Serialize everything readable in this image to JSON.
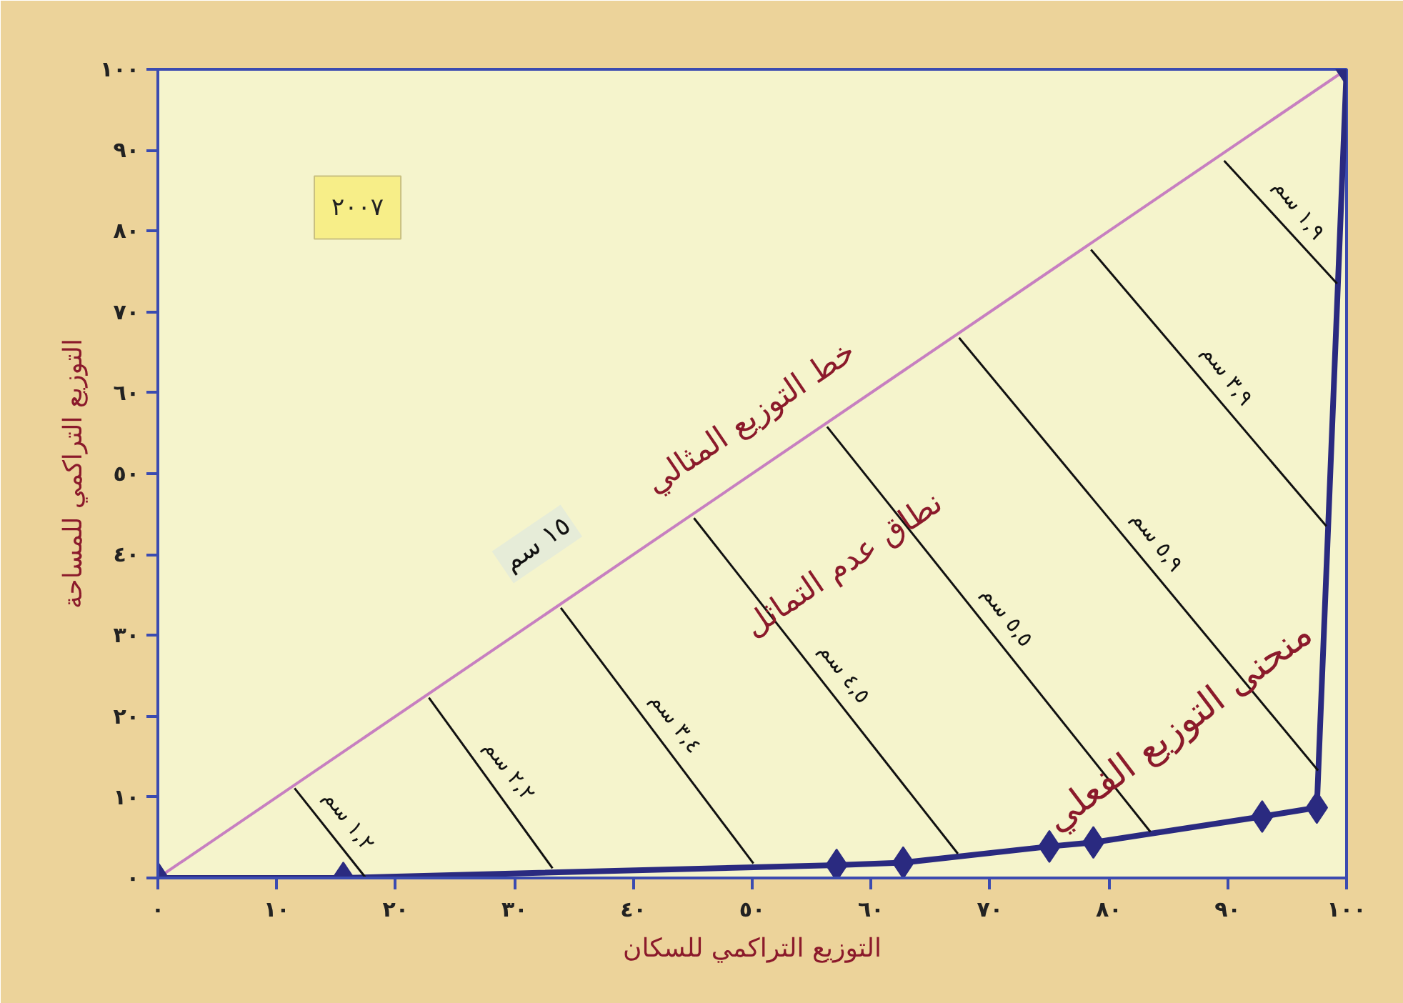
{
  "chart_data": {
    "type": "line",
    "xlabel": "التوزيع التراكمي للسكان",
    "ylabel": "التوزيع التراكمي للمساحة",
    "xlim": [
      0,
      100
    ],
    "ylim": [
      0,
      100
    ],
    "xticks": [
      {
        "value": 0,
        "label": "٠"
      },
      {
        "value": 10,
        "label": "١٠"
      },
      {
        "value": 20,
        "label": "٢٠"
      },
      {
        "value": 30,
        "label": "٣٠"
      },
      {
        "value": 40,
        "label": "٤٠"
      },
      {
        "value": 50,
        "label": "٥٠"
      },
      {
        "value": 60,
        "label": "٦٠"
      },
      {
        "value": 70,
        "label": "٧٠"
      },
      {
        "value": 80,
        "label": "٨٠"
      },
      {
        "value": 90,
        "label": "٩٠"
      },
      {
        "value": 100,
        "label": "١٠٠"
      }
    ],
    "yticks": [
      {
        "value": 0,
        "label": "٠"
      },
      {
        "value": 10,
        "label": "١٠"
      },
      {
        "value": 20,
        "label": "٢٠"
      },
      {
        "value": 30,
        "label": "٣٠"
      },
      {
        "value": 40,
        "label": "٤٠"
      },
      {
        "value": 50,
        "label": "٥٠"
      },
      {
        "value": 60,
        "label": "٦٠"
      },
      {
        "value": 70,
        "label": "٧٠"
      },
      {
        "value": 80,
        "label": "٨٠"
      },
      {
        "value": 90,
        "label": "٩٠"
      },
      {
        "value": 100,
        "label": "١٠٠"
      }
    ],
    "grid": false,
    "line_style": "solid",
    "series": [
      {
        "color": "#c77fc0",
        "marker": "none",
        "x": [
          0,
          100
        ],
        "values": [
          0,
          100
        ]
      },
      {
        "color": "#2a2a80",
        "marker": "diamond",
        "x": [
          0,
          15.6,
          57.1,
          62.7,
          75.0,
          78.7,
          92.9,
          97.5,
          100
        ],
        "values": [
          0,
          0,
          1.6,
          1.9,
          3.9,
          4.4,
          7.6,
          8.7,
          100
        ]
      },
      {
        "color": "#111111",
        "marker": "none",
        "x": [
          11.5,
          17.5
        ],
        "values": [
          11.1,
          0
        ]
      },
      {
        "color": "#111111",
        "marker": "none",
        "x": [
          22.8,
          33.2
        ],
        "values": [
          22.3,
          1.2
        ]
      },
      {
        "color": "#111111",
        "marker": "none",
        "x": [
          33.9,
          50.1
        ],
        "values": [
          33.4,
          1.8
        ]
      },
      {
        "color": "#111111",
        "marker": "none",
        "x": [
          45.1,
          67.3
        ],
        "values": [
          44.5,
          3.0
        ]
      },
      {
        "color": "#111111",
        "marker": "none",
        "x": [
          56.3,
          83.5
        ],
        "values": [
          55.8,
          5.7
        ]
      },
      {
        "color": "#111111",
        "marker": "none",
        "x": [
          67.4,
          97.6
        ],
        "values": [
          66.8,
          13.3
        ]
      },
      {
        "color": "#111111",
        "marker": "none",
        "x": [
          78.5,
          98.3
        ],
        "values": [
          77.7,
          43.5
        ]
      },
      {
        "color": "#111111",
        "marker": "none",
        "x": [
          89.7,
          99.2
        ],
        "values": [
          88.7,
          73.5
        ]
      }
    ],
    "annotations": [
      "٢٠٠٧",
      "خط التوزيع المثالي",
      "١٥ سم",
      "نطاق عدم التماثل",
      "منحنى التوزيع الفعلي",
      "١,٢ سم",
      "٢,٢ سم",
      "٣,٤ سم",
      "٤,٥ سم",
      "٥,٥ سم",
      "٥,٩ سم",
      "٣,٩ سم",
      "١,٩ سم"
    ]
  }
}
